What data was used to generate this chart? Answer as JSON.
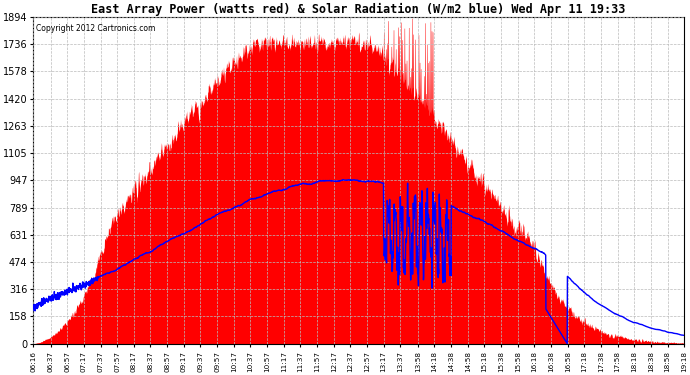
{
  "title": "East Array Power (watts red) & Solar Radiation (W/m2 blue) Wed Apr 11 19:33",
  "copyright": "Copyright 2012 Cartronics.com",
  "yticks": [
    0.0,
    157.8,
    315.6,
    473.5,
    631.3,
    789.1,
    946.9,
    1104.7,
    1262.6,
    1420.4,
    1578.2,
    1736.0,
    1893.9
  ],
  "ymax": 1893.9,
  "ymin": 0.0,
  "bg_color": "#ffffff",
  "plot_bg_color": "#ffffff",
  "grid_color": "#bbbbbb",
  "red_color": "#ff0000",
  "blue_color": "#0000ff",
  "xtick_labels": [
    "06:16",
    "06:37",
    "06:57",
    "07:17",
    "07:37",
    "07:57",
    "08:17",
    "08:37",
    "08:57",
    "09:17",
    "09:37",
    "09:57",
    "10:17",
    "10:37",
    "10:57",
    "11:17",
    "11:37",
    "11:57",
    "12:17",
    "12:37",
    "12:57",
    "13:17",
    "13:37",
    "13:58",
    "14:18",
    "14:38",
    "14:58",
    "15:18",
    "15:38",
    "15:58",
    "16:18",
    "16:38",
    "16:58",
    "17:18",
    "17:38",
    "17:58",
    "18:18",
    "18:38",
    "18:58",
    "19:18"
  ]
}
